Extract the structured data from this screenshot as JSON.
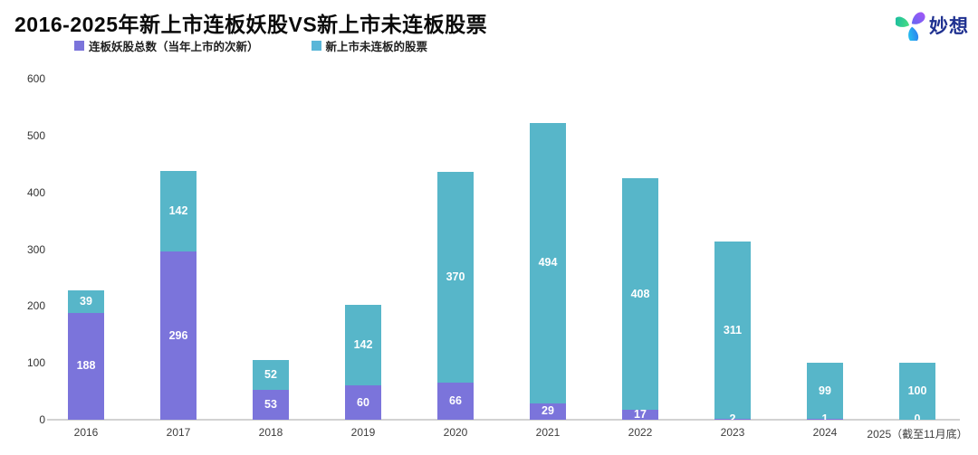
{
  "header": {
    "title": "2016-2025年新上市连板妖股VS新上市未连板股票",
    "brand": "妙想"
  },
  "legend": {
    "items": [
      {
        "label": "连板妖股总数（当年上市的次新）",
        "color": "#7b74db"
      },
      {
        "label": "新上市未连板的股票",
        "color": "#5ab6d8"
      }
    ]
  },
  "logo_colors": {
    "purple_from": "#a855f7",
    "purple_to": "#6366f1",
    "green_from": "#4ade80",
    "green_to": "#14b8a6",
    "blue_from": "#2f6bf0",
    "blue_to": "#22d3ee",
    "text": "#1f3190"
  },
  "chart_data": {
    "type": "bar",
    "stacked": true,
    "title": "2016-2025年新上市连板妖股VS新上市未连板股票",
    "categories": [
      "2016",
      "2017",
      "2018",
      "2019",
      "2020",
      "2021",
      "2022",
      "2023",
      "2024",
      "2025（截至11月底）"
    ],
    "series": [
      {
        "name": "连板妖股总数（当年上市的次新）",
        "color": "#7b74db",
        "values": [
          188,
          296,
          53,
          60,
          66,
          29,
          17,
          2,
          1,
          0
        ]
      },
      {
        "name": "新上市未连板的股票",
        "color": "#57b6c9",
        "values": [
          39,
          142,
          52,
          142,
          370,
          494,
          408,
          311,
          99,
          100
        ]
      }
    ],
    "xlabel": "",
    "ylabel": "",
    "ylim": [
      0,
      600
    ],
    "yticks": [
      0,
      100,
      200,
      300,
      400,
      500,
      600
    ],
    "grid": false,
    "legend_position": "top-left",
    "value_labels": "white-inside-segments"
  }
}
